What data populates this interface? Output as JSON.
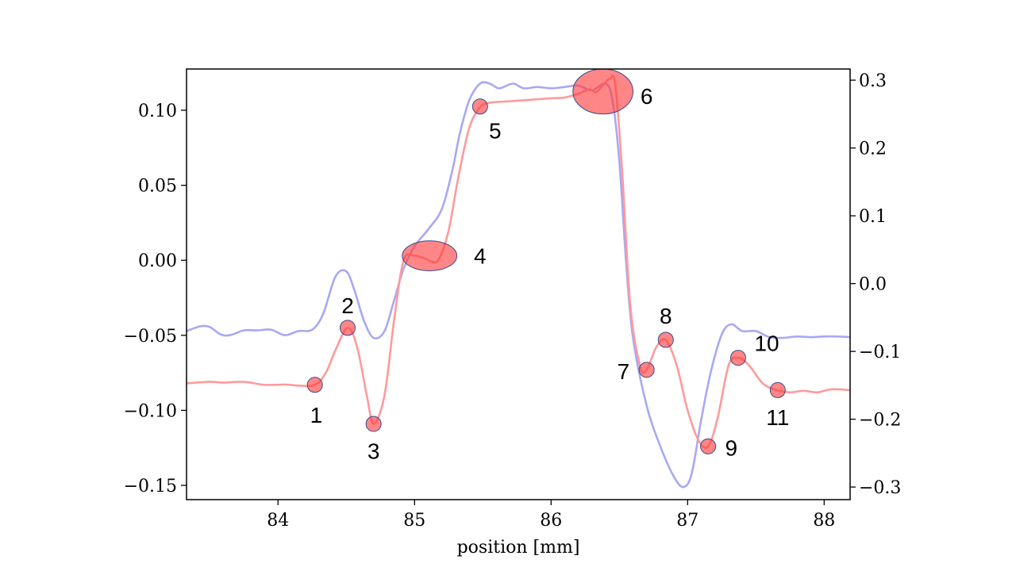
{
  "chart_data": {
    "type": "line",
    "xlabel": "position [mm]",
    "xlim": [
      83.33,
      88.19
    ],
    "ylim_left": [
      -0.1595,
      0.1275
    ],
    "ylim_right": [
      -0.3186,
      0.3165
    ],
    "x_ticks": [
      84,
      85,
      86,
      87,
      88
    ],
    "x_tick_labels": [
      "84",
      "85",
      "86",
      "87",
      "88"
    ],
    "y_left_ticks": [
      -0.15,
      -0.1,
      -0.05,
      0.0,
      0.05,
      0.1
    ],
    "y_left_tick_labels": [
      "−0.15",
      "−0.10",
      "−0.05",
      "0.00",
      "0.05",
      "0.10"
    ],
    "y_right_ticks": [
      -0.3,
      -0.2,
      -0.1,
      0.0,
      0.1,
      0.2,
      0.3
    ],
    "y_right_tick_labels": [
      "−0.3",
      "−0.2",
      "−0.1",
      "0.0",
      "0.1",
      "0.2",
      "0.3"
    ],
    "grid": false,
    "series": [
      {
        "axis": "left",
        "color": "#ff9a9a",
        "points": [
          [
            83.33,
            -0.082
          ],
          [
            83.5,
            -0.081
          ],
          [
            83.6,
            -0.0815
          ],
          [
            83.75,
            -0.081
          ],
          [
            83.9,
            -0.083
          ],
          [
            84.05,
            -0.0828
          ],
          [
            84.15,
            -0.0835
          ],
          [
            84.27,
            -0.083
          ],
          [
            84.35,
            -0.075
          ],
          [
            84.42,
            -0.06
          ],
          [
            84.51,
            -0.045
          ],
          [
            84.58,
            -0.058
          ],
          [
            84.65,
            -0.09
          ],
          [
            84.7,
            -0.109
          ],
          [
            84.78,
            -0.09
          ],
          [
            84.85,
            -0.04
          ],
          [
            84.92,
            0.0
          ],
          [
            85.0,
            0.003
          ],
          [
            85.08,
            0.001
          ],
          [
            85.13,
            -0.001
          ],
          [
            85.18,
            0.001
          ],
          [
            85.25,
            0.02
          ],
          [
            85.32,
            0.055
          ],
          [
            85.4,
            0.088
          ],
          [
            85.48,
            0.102
          ],
          [
            85.55,
            0.105
          ],
          [
            85.7,
            0.106
          ],
          [
            85.85,
            0.107
          ],
          [
            86.0,
            0.108
          ],
          [
            86.1,
            0.1085
          ],
          [
            86.2,
            0.111
          ],
          [
            86.28,
            0.114
          ],
          [
            86.33,
            0.112
          ],
          [
            86.38,
            0.1165
          ],
          [
            86.43,
            0.121
          ],
          [
            86.47,
            0.117
          ],
          [
            86.52,
            0.06
          ],
          [
            86.58,
            -0.03
          ],
          [
            86.65,
            -0.07
          ],
          [
            86.7,
            -0.073
          ],
          [
            86.77,
            -0.058
          ],
          [
            86.84,
            -0.053
          ],
          [
            86.92,
            -0.07
          ],
          [
            87.0,
            -0.1
          ],
          [
            87.08,
            -0.12
          ],
          [
            87.15,
            -0.124
          ],
          [
            87.22,
            -0.105
          ],
          [
            87.3,
            -0.07
          ],
          [
            87.37,
            -0.065
          ],
          [
            87.45,
            -0.07
          ],
          [
            87.55,
            -0.082
          ],
          [
            87.65,
            -0.0865
          ],
          [
            87.75,
            -0.088
          ],
          [
            87.85,
            -0.087
          ],
          [
            87.95,
            -0.088
          ],
          [
            88.05,
            -0.086
          ],
          [
            88.19,
            -0.0865
          ]
        ]
      },
      {
        "axis": "right",
        "color": "#a8a8f5",
        "points": [
          [
            83.33,
            -0.07
          ],
          [
            83.43,
            -0.063
          ],
          [
            83.5,
            -0.064
          ],
          [
            83.58,
            -0.075
          ],
          [
            83.65,
            -0.076
          ],
          [
            83.75,
            -0.069
          ],
          [
            83.85,
            -0.069
          ],
          [
            83.95,
            -0.068
          ],
          [
            84.05,
            -0.076
          ],
          [
            84.15,
            -0.07
          ],
          [
            84.25,
            -0.068
          ],
          [
            84.33,
            -0.045
          ],
          [
            84.42,
            0.01
          ],
          [
            84.5,
            0.018
          ],
          [
            84.56,
            -0.01
          ],
          [
            84.63,
            -0.055
          ],
          [
            84.7,
            -0.08
          ],
          [
            84.78,
            -0.07
          ],
          [
            84.85,
            -0.025
          ],
          [
            84.92,
            0.022
          ],
          [
            85.0,
            0.055
          ],
          [
            85.1,
            0.08
          ],
          [
            85.2,
            0.11
          ],
          [
            85.28,
            0.17
          ],
          [
            85.33,
            0.22
          ],
          [
            85.4,
            0.27
          ],
          [
            85.48,
            0.295
          ],
          [
            85.55,
            0.295
          ],
          [
            85.62,
            0.288
          ],
          [
            85.72,
            0.295
          ],
          [
            85.8,
            0.288
          ],
          [
            85.9,
            0.29
          ],
          [
            86.0,
            0.288
          ],
          [
            86.1,
            0.29
          ],
          [
            86.2,
            0.292
          ],
          [
            86.3,
            0.285
          ],
          [
            86.4,
            0.295
          ],
          [
            86.45,
            0.27
          ],
          [
            86.5,
            0.18
          ],
          [
            86.55,
            0.03
          ],
          [
            86.6,
            -0.08
          ],
          [
            86.7,
            -0.18
          ],
          [
            86.8,
            -0.24
          ],
          [
            86.9,
            -0.285
          ],
          [
            86.97,
            -0.3
          ],
          [
            87.03,
            -0.28
          ],
          [
            87.1,
            -0.2
          ],
          [
            87.17,
            -0.13
          ],
          [
            87.25,
            -0.075
          ],
          [
            87.32,
            -0.06
          ],
          [
            87.4,
            -0.07
          ],
          [
            87.5,
            -0.07
          ],
          [
            87.6,
            -0.079
          ],
          [
            87.7,
            -0.08
          ],
          [
            87.8,
            -0.078
          ],
          [
            87.9,
            -0.079
          ],
          [
            88.0,
            -0.078
          ],
          [
            88.1,
            -0.078
          ],
          [
            88.19,
            -0.079
          ]
        ]
      }
    ],
    "highlights": [
      {
        "label": "1",
        "x": 84.27,
        "y": -0.083,
        "rx": 0.055,
        "ry": 0.0045,
        "label_dx": 0.01,
        "label_dy": -0.02
      },
      {
        "label": "2",
        "x": 84.51,
        "y": -0.045,
        "rx": 0.055,
        "ry": 0.0045,
        "label_dx": 0.0,
        "label_dy": 0.015
      },
      {
        "label": "3",
        "x": 84.7,
        "y": -0.109,
        "rx": 0.055,
        "ry": 0.0045,
        "label_dx": 0.0,
        "label_dy": -0.018
      },
      {
        "label": "4",
        "x": 85.11,
        "y": 0.003,
        "rx": 0.2,
        "ry": 0.01,
        "label_dx": 0.37,
        "label_dy": 0.0
      },
      {
        "label": "5",
        "x": 85.48,
        "y": 0.1025,
        "rx": 0.055,
        "ry": 0.0045,
        "label_dx": 0.11,
        "label_dy": -0.016
      },
      {
        "label": "6",
        "x": 86.38,
        "y": 0.1125,
        "rx": 0.22,
        "ry": 0.015,
        "label_dx": 0.32,
        "label_dy": -0.003
      },
      {
        "label": "7",
        "x": 86.7,
        "y": -0.073,
        "rx": 0.055,
        "ry": 0.0045,
        "label_dx": -0.17,
        "label_dy": -0.001
      },
      {
        "label": "8",
        "x": 86.84,
        "y": -0.053,
        "rx": 0.055,
        "ry": 0.0045,
        "label_dx": 0.0,
        "label_dy": 0.016
      },
      {
        "label": "9",
        "x": 87.15,
        "y": -0.124,
        "rx": 0.055,
        "ry": 0.0045,
        "label_dx": 0.17,
        "label_dy": -0.001
      },
      {
        "label": "10",
        "x": 87.37,
        "y": -0.065,
        "rx": 0.055,
        "ry": 0.0045,
        "label_dx": 0.21,
        "label_dy": 0.01
      },
      {
        "label": "11",
        "x": 87.66,
        "y": -0.0865,
        "rx": 0.055,
        "ry": 0.0045,
        "label_dx": 0.0,
        "label_dy": -0.018
      }
    ]
  }
}
